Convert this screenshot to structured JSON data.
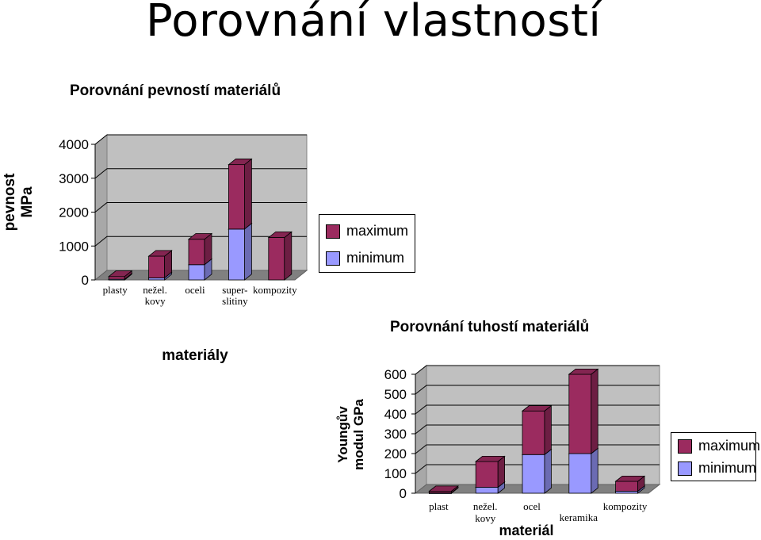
{
  "page": {
    "title": "Porovnání vlastností"
  },
  "colors": {
    "maximum": "#9b2b5f",
    "minimum": "#9999ff",
    "plot_bg": "#c0c0c0",
    "floor": "#808080"
  },
  "chart_data": [
    {
      "type": "bar",
      "stacked": true,
      "title": "Porovnání pevností materiálů",
      "xlabel": "materiály",
      "ylabel": [
        "pevnost",
        "MPa"
      ],
      "ylim": [
        0,
        4000
      ],
      "yticks": [
        "0",
        "1000",
        "2000",
        "3000",
        "4000"
      ],
      "categories": [
        [
          "plasty"
        ],
        [
          "nežel.",
          "kovy"
        ],
        [
          "oceli"
        ],
        [
          "super-",
          "slitiny"
        ],
        [
          "kompozity"
        ]
      ],
      "series": [
        {
          "name": "minimum",
          "values": [
            20,
            60,
            450,
            1500,
            0
          ]
        },
        {
          "name": "maximum",
          "values": [
            80,
            640,
            750,
            1900,
            1250
          ]
        }
      ],
      "legend": [
        "maximum",
        "minimum"
      ],
      "legend_position": "right",
      "grid": true
    },
    {
      "type": "bar",
      "stacked": true,
      "title": "Porovnání tuhostí materiálů",
      "xlabel": "materiál",
      "ylabel": [
        "Youngův",
        "modul GPa"
      ],
      "ylim": [
        0,
        600
      ],
      "yticks": [
        "0",
        "100",
        "200",
        "300",
        "400",
        "500",
        "600"
      ],
      "categories": [
        [
          "plast"
        ],
        [
          "nežel.",
          "kovy"
        ],
        [
          "ocel"
        ],
        [
          "keramika"
        ],
        [
          "kompozity"
        ]
      ],
      "series": [
        {
          "name": "minimum",
          "values": [
            2,
            30,
            195,
            200,
            10
          ]
        },
        {
          "name": "maximum",
          "values": [
            8,
            130,
            220,
            400,
            50
          ]
        }
      ],
      "legend": [
        "maximum",
        "minimum"
      ],
      "legend_position": "right",
      "grid": true
    }
  ]
}
